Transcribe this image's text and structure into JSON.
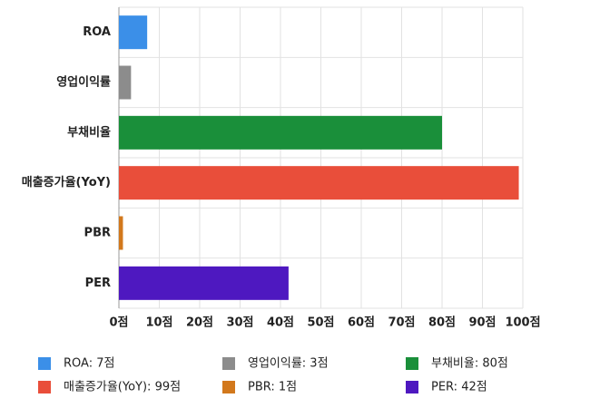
{
  "chart_data": {
    "type": "barh",
    "categories": [
      "ROA",
      "영업이익률",
      "부채비율",
      "매출증가율(YoY)",
      "PBR",
      "PER"
    ],
    "values": [
      7,
      3,
      80,
      99,
      1,
      42
    ],
    "value_labels": [
      "ROA: 7점",
      "영업이익률: 3점",
      "부채비율: 80점",
      "매출증가율(YoY): 99점",
      "PBR: 1점",
      "PER: 42점"
    ],
    "colors": [
      "#3b8fe8",
      "#8c8c8c",
      "#1a8f3a",
      "#e94e3a",
      "#d2781c",
      "#4e18c0"
    ],
    "xlim": [
      0,
      100
    ],
    "xticks": [
      {
        "value": 0,
        "label": "0점"
      },
      {
        "value": 10,
        "label": "10점"
      },
      {
        "value": 20,
        "label": "20점"
      },
      {
        "value": 30,
        "label": "30점"
      },
      {
        "value": 40,
        "label": "40점"
      },
      {
        "value": 50,
        "label": "50점"
      },
      {
        "value": 60,
        "label": "60점"
      },
      {
        "value": 70,
        "label": "70점"
      },
      {
        "value": 80,
        "label": "80점"
      },
      {
        "value": 90,
        "label": "90점"
      },
      {
        "value": 100,
        "label": "100점"
      }
    ],
    "grid": true,
    "legend": "bottom"
  }
}
